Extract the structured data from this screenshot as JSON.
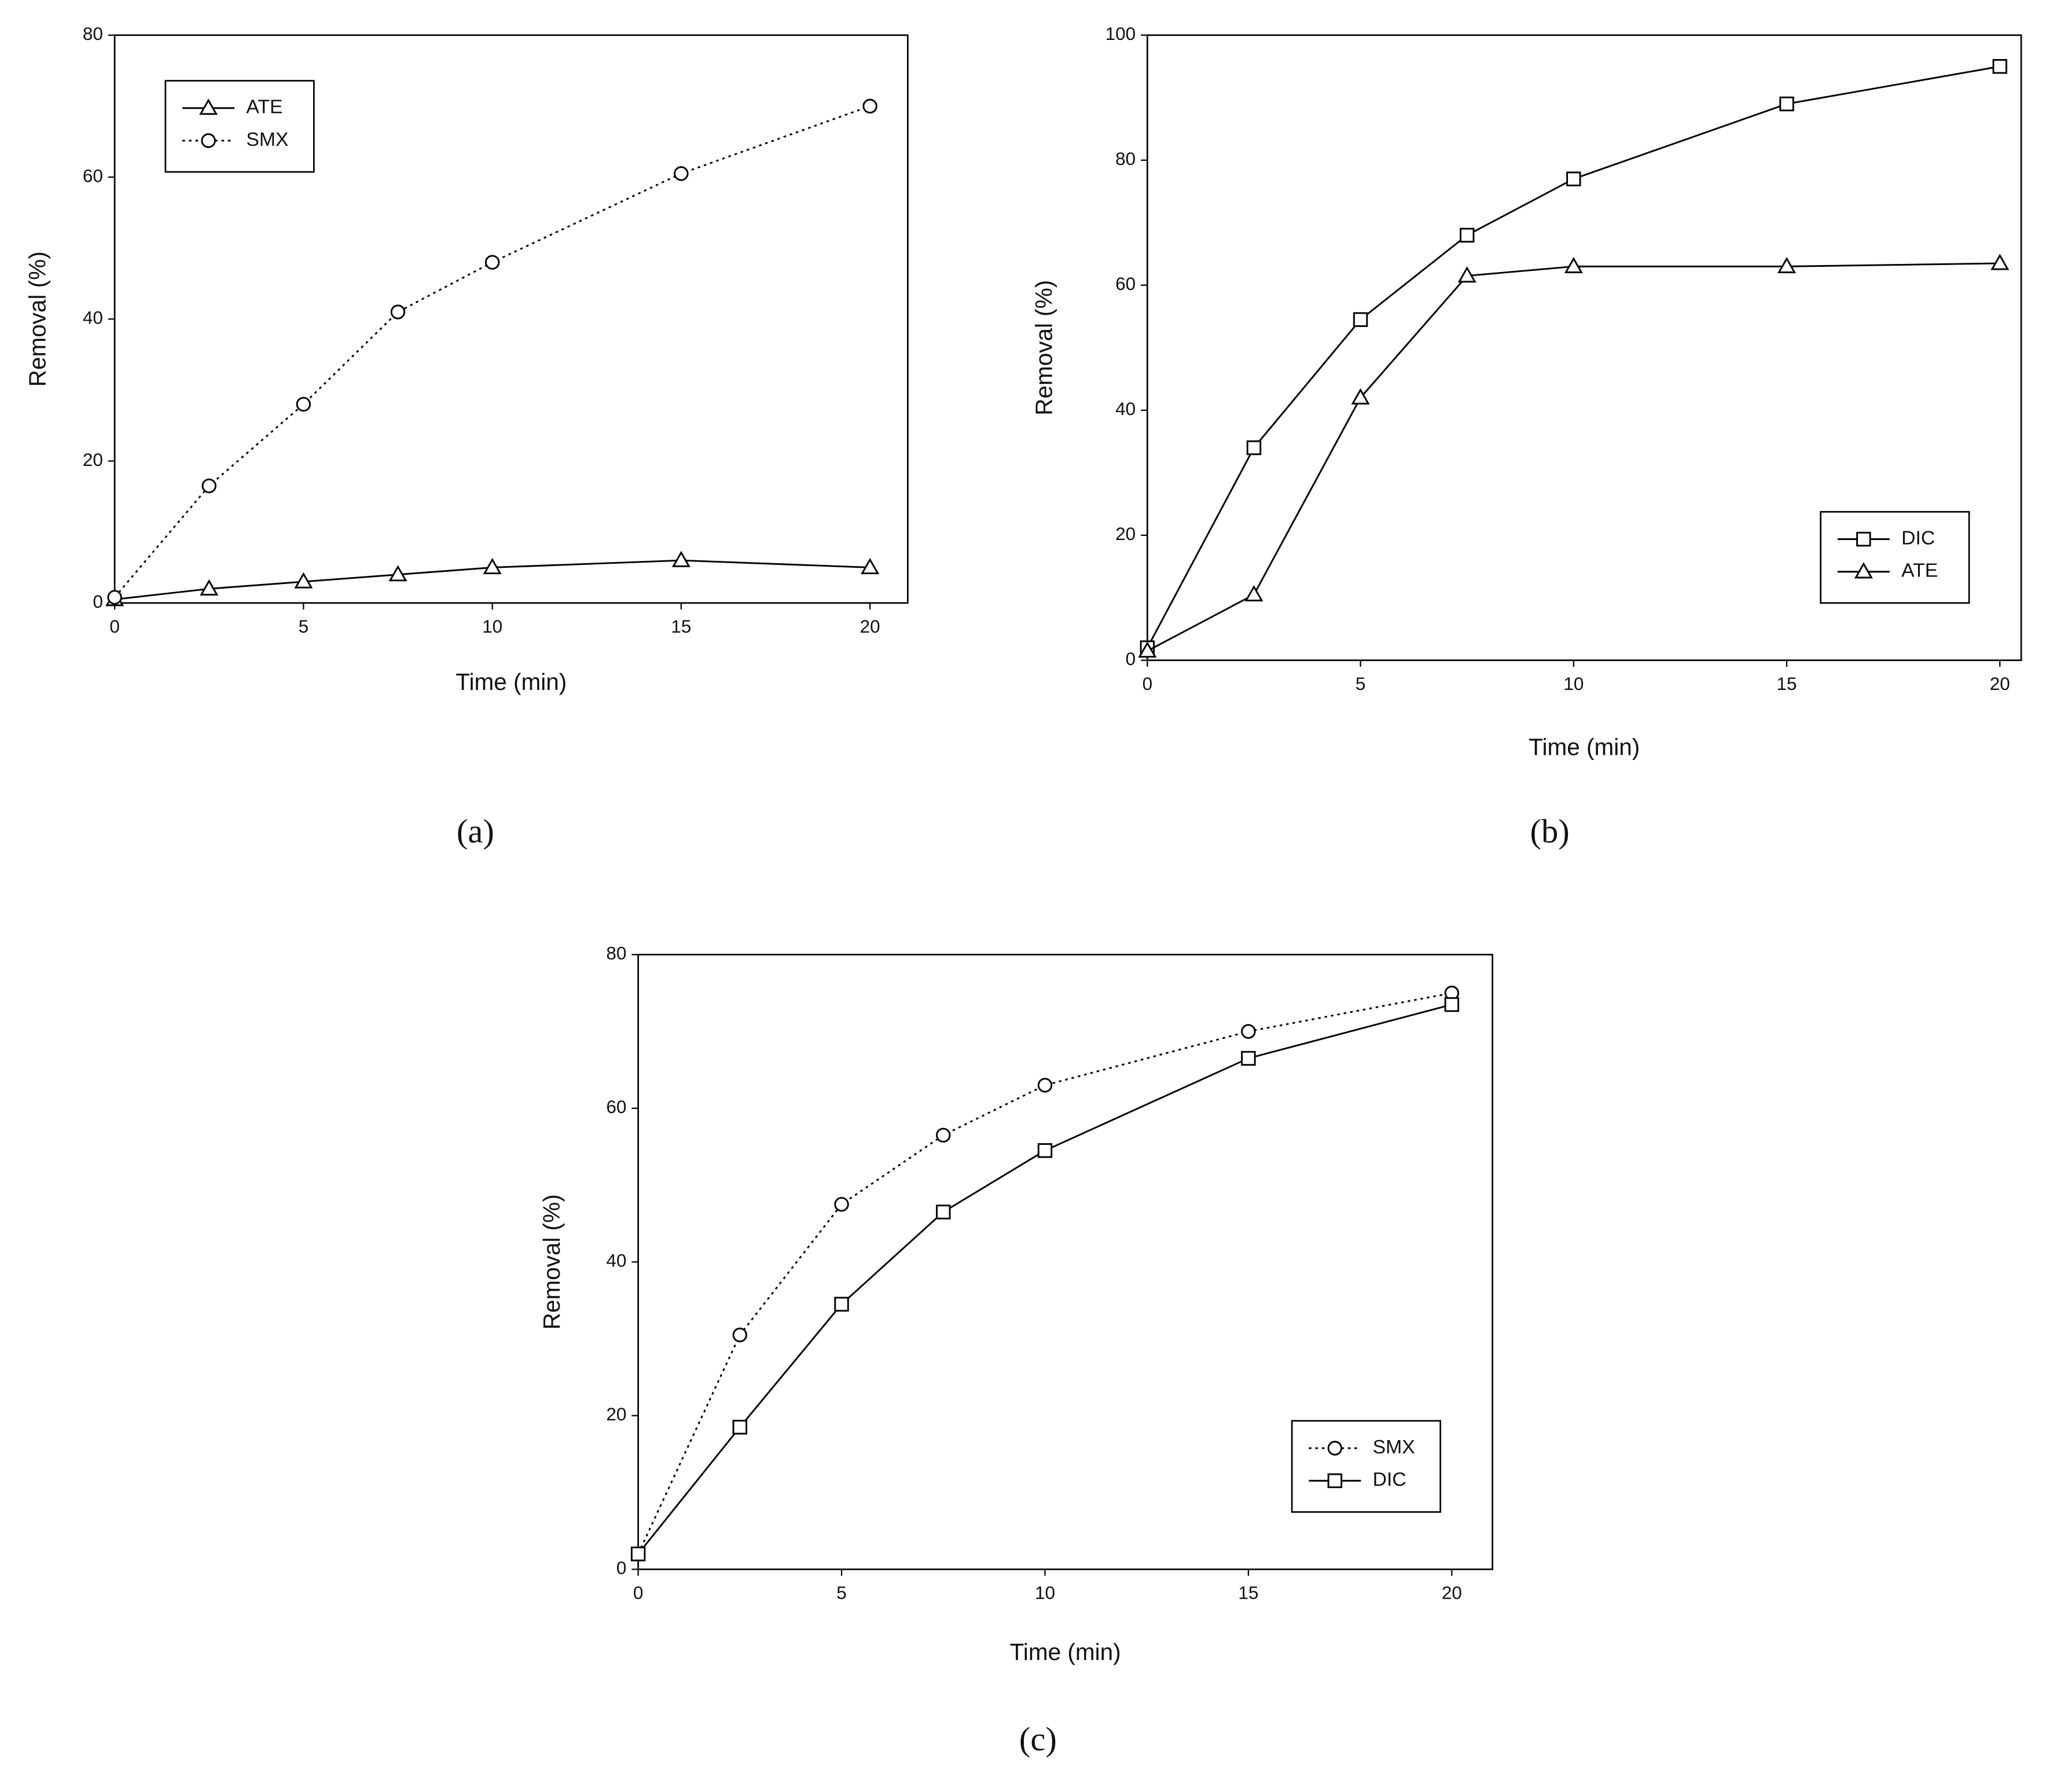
{
  "chart_data": [
    {
      "type": "line",
      "label": "(a)",
      "xlabel": "Time (min)",
      "ylabel": "Removal (%)",
      "x": [
        0,
        2.5,
        5,
        7.5,
        10,
        15,
        20
      ],
      "series": [
        {
          "name": "ATE",
          "color": "#000000",
          "marker": "triangle",
          "dash": "solid",
          "values": [
            0.5,
            2,
            3,
            4,
            5,
            6,
            5
          ]
        },
        {
          "name": "SMX",
          "color": "#000000",
          "marker": "circle",
          "dash": "dotted",
          "values": [
            0.8,
            16.5,
            28,
            41,
            48,
            60.5,
            70
          ]
        }
      ],
      "xlim": [
        0,
        21
      ],
      "xticks": [
        0,
        5,
        10,
        15,
        20
      ],
      "ylim": [
        0,
        80
      ],
      "yticks": [
        0,
        20,
        40,
        60,
        80
      ],
      "legend": "upper left"
    },
    {
      "type": "line",
      "label": "(b)",
      "xlabel": "Time (min)",
      "ylabel": "Removal (%)",
      "x": [
        0,
        2.5,
        5,
        7.5,
        10,
        15,
        20
      ],
      "series": [
        {
          "name": "DIC",
          "color": "#000000",
          "marker": "square",
          "dash": "solid",
          "values": [
            2,
            34,
            54.5,
            68,
            77,
            89,
            95
          ]
        },
        {
          "name": "ATE",
          "color": "#000000",
          "marker": "triangle",
          "dash": "solid",
          "values": [
            1.5,
            10.5,
            42,
            61.5,
            63,
            63,
            63.5
          ]
        }
      ],
      "xlim": [
        0,
        20.5
      ],
      "xticks": [
        0,
        5,
        10,
        15,
        20
      ],
      "ylim": [
        0,
        100
      ],
      "yticks": [
        0,
        20,
        40,
        60,
        80,
        100
      ],
      "legend": "lower right"
    },
    {
      "type": "line",
      "label": "(c)",
      "xlabel": "Time (min)",
      "ylabel": "Removal (%)",
      "x": [
        0,
        2.5,
        5,
        7.5,
        10,
        15,
        20
      ],
      "series": [
        {
          "name": "SMX",
          "color": "#000000",
          "marker": "circle",
          "dash": "dotted",
          "values": [
            2,
            30.5,
            47.5,
            56.5,
            63,
            70,
            75
          ]
        },
        {
          "name": "DIC",
          "color": "#000000",
          "marker": "square",
          "dash": "solid",
          "values": [
            2,
            18.5,
            34.5,
            46.5,
            54.5,
            66.5,
            73.5
          ]
        }
      ],
      "xlim": [
        0,
        21
      ],
      "xticks": [
        0,
        5,
        10,
        15,
        20
      ],
      "ylim": [
        0,
        80
      ],
      "yticks": [
        0,
        20,
        40,
        60,
        80
      ],
      "legend": "lower right"
    }
  ]
}
